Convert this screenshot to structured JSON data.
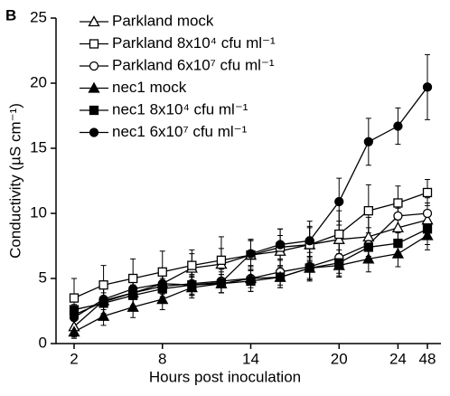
{
  "chart_data": {
    "type": "line",
    "panel_label": "B",
    "x_label": "Hours post inoculation",
    "y_label": "Conductivity (µS cm⁻¹)",
    "categories": [
      "2",
      null,
      null,
      "8",
      null,
      null,
      "14",
      null,
      null,
      "20",
      null,
      "24",
      "48"
    ],
    "ylim": [
      0,
      25
    ],
    "yticks": [
      0,
      5,
      10,
      15,
      20,
      25
    ],
    "series": [
      {
        "name": "Parkland mock",
        "color": "#000000",
        "marker": "triangle",
        "fill": "open",
        "values": [
          1.3,
          3.3,
          3.9,
          4.6,
          5.8,
          6.1,
          6.8,
          7.1,
          7.6,
          8.0,
          8.2,
          8.9,
          9.5
        ],
        "errors": [
          0.8,
          1.0,
          1.0,
          1.0,
          1.1,
          1.2,
          1.2,
          1.2,
          1.3,
          1.4,
          1.5,
          1.5,
          1.3
        ]
      },
      {
        "name": "Parkland 8x10⁴ cfu ml⁻¹",
        "color": "#000000",
        "marker": "square",
        "fill": "open",
        "values": [
          3.5,
          4.5,
          5.0,
          5.5,
          6.0,
          6.4,
          6.8,
          7.4,
          7.6,
          8.4,
          10.2,
          10.8,
          11.6
        ],
        "errors": [
          1.5,
          1.5,
          1.5,
          1.6,
          1.2,
          1.8,
          1.2,
          1.4,
          1.4,
          1.8,
          2.0,
          1.3,
          1.0
        ]
      },
      {
        "name": "Parkland 6x10⁷ cfu ml⁻¹",
        "color": "#000000",
        "marker": "circle",
        "fill": "open",
        "values": [
          2.2,
          3.2,
          3.9,
          4.4,
          4.6,
          4.8,
          5.0,
          5.5,
          5.9,
          6.6,
          7.6,
          9.8,
          10.0
        ],
        "errors": [
          0.8,
          1.0,
          1.0,
          1.0,
          0.9,
          0.9,
          1.0,
          1.0,
          1.1,
          1.2,
          1.3,
          1.3,
          1.2
        ]
      },
      {
        "name": "nec1 mock",
        "color": "#000000",
        "marker": "triangle",
        "fill": "filled",
        "values": [
          0.9,
          2.1,
          2.8,
          3.4,
          4.3,
          4.6,
          5.0,
          5.1,
          5.8,
          6.0,
          6.5,
          6.9,
          8.3
        ],
        "errors": [
          0.5,
          0.7,
          0.8,
          0.8,
          0.8,
          0.7,
          0.7,
          0.8,
          0.8,
          0.9,
          1.0,
          1.0,
          1.1
        ]
      },
      {
        "name": "nec1 8x10⁴ cfu ml⁻¹",
        "color": "#000000",
        "marker": "square",
        "fill": "filled",
        "values": [
          2.6,
          3.1,
          3.7,
          4.2,
          4.5,
          4.6,
          4.8,
          5.1,
          5.8,
          6.2,
          7.4,
          7.7,
          8.8
        ],
        "errors": [
          0.7,
          0.8,
          0.8,
          0.8,
          0.7,
          0.7,
          0.8,
          0.8,
          0.9,
          1.0,
          1.1,
          1.1,
          1.2
        ]
      },
      {
        "name": "nec1 6x10⁷ cfu ml⁻¹",
        "color": "#000000",
        "marker": "circle",
        "fill": "filled",
        "values": [
          2.0,
          3.4,
          4.2,
          4.6,
          4.5,
          4.7,
          6.9,
          7.6,
          7.9,
          10.9,
          15.5,
          16.7,
          19.7
        ],
        "errors": [
          0.8,
          0.8,
          0.8,
          0.8,
          0.8,
          0.8,
          1.0,
          1.2,
          1.5,
          1.8,
          1.8,
          1.4,
          2.5
        ]
      }
    ]
  }
}
